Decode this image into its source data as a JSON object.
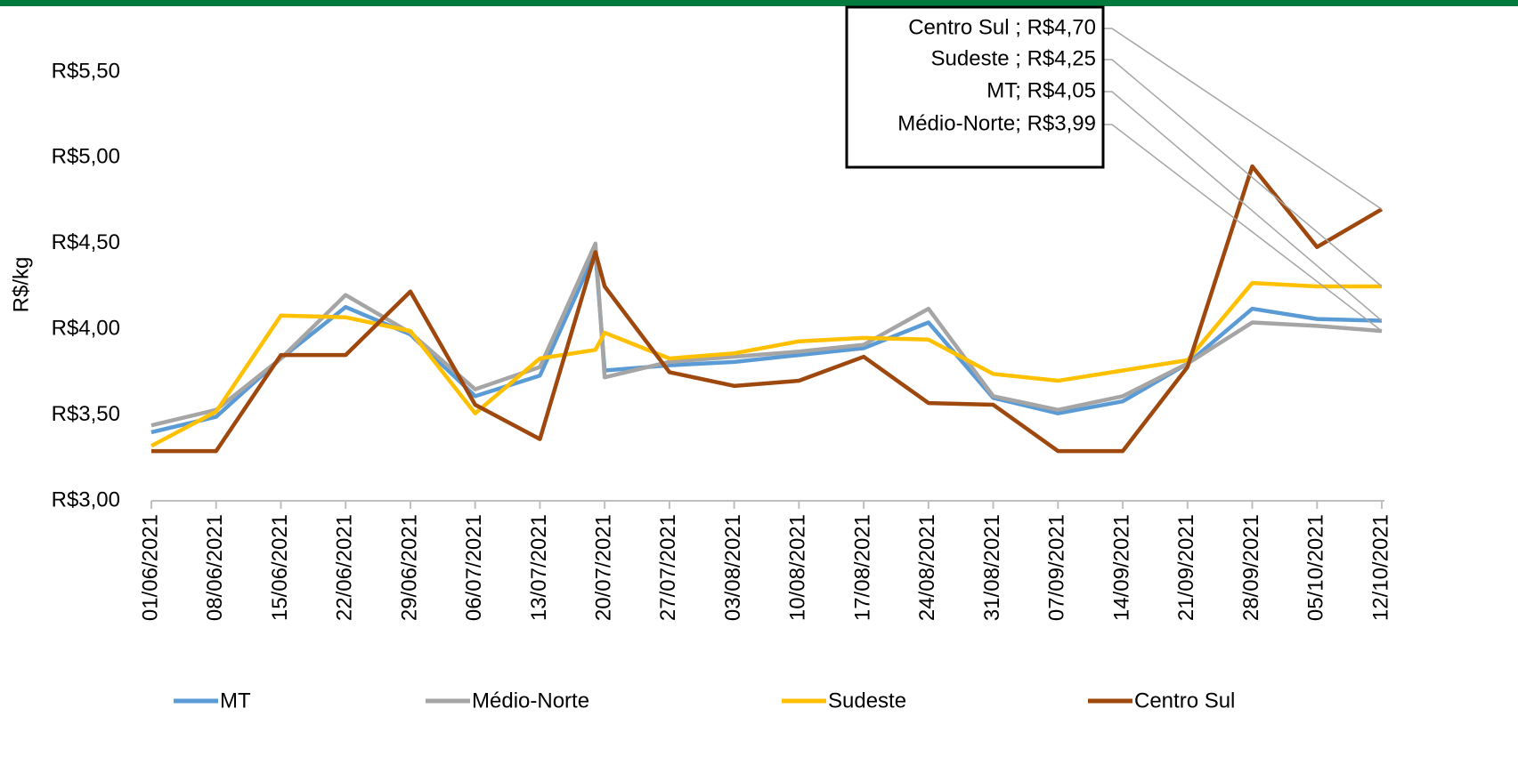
{
  "chart_data": {
    "type": "line",
    "y_label": "R$/kg",
    "x": [
      "2021-06-01",
      "2021-06-08",
      "2021-06-15",
      "2021-06-22",
      "2021-06-29",
      "2021-07-06",
      "2021-07-13",
      "2021-07-19",
      "2021-07-20",
      "2021-07-27",
      "2021-08-03",
      "2021-08-10",
      "2021-08-17",
      "2021-08-24",
      "2021-08-31",
      "2021-09-07",
      "2021-09-14",
      "2021-09-21",
      "2021-09-28",
      "2021-10-05",
      "2021-10-12"
    ],
    "xlim": [
      "2021-06-01",
      "2021-10-12"
    ],
    "xticks": [
      {
        "value": "2021-06-01",
        "label": "01/06/2021"
      },
      {
        "value": "2021-06-08",
        "label": "08/06/2021"
      },
      {
        "value": "2021-06-15",
        "label": "15/06/2021"
      },
      {
        "value": "2021-06-22",
        "label": "22/06/2021"
      },
      {
        "value": "2021-06-29",
        "label": "29/06/2021"
      },
      {
        "value": "2021-07-06",
        "label": "06/07/2021"
      },
      {
        "value": "2021-07-13",
        "label": "13/07/2021"
      },
      {
        "value": "2021-07-20",
        "label": "20/07/2021"
      },
      {
        "value": "2021-07-27",
        "label": "27/07/2021"
      },
      {
        "value": "2021-08-03",
        "label": "03/08/2021"
      },
      {
        "value": "2021-08-10",
        "label": "10/08/2021"
      },
      {
        "value": "2021-08-17",
        "label": "17/08/2021"
      },
      {
        "value": "2021-08-24",
        "label": "24/08/2021"
      },
      {
        "value": "2021-08-31",
        "label": "31/08/2021"
      },
      {
        "value": "2021-09-07",
        "label": "07/09/2021"
      },
      {
        "value": "2021-09-14",
        "label": "14/09/2021"
      },
      {
        "value": "2021-09-21",
        "label": "21/09/2021"
      },
      {
        "value": "2021-09-28",
        "label": "28/09/2021"
      },
      {
        "value": "2021-10-05",
        "label": "05/10/2021"
      },
      {
        "value": "2021-10-12",
        "label": "12/10/2021"
      }
    ],
    "ylim": [
      3,
      5.8
    ],
    "yticks": [
      {
        "value": 3,
        "label": "R$3,00"
      },
      {
        "value": 3.5,
        "label": "R$3,50"
      },
      {
        "value": 4,
        "label": "R$4,00"
      },
      {
        "value": 4.5,
        "label": "R$4,50"
      },
      {
        "value": 5,
        "label": "R$5,00"
      },
      {
        "value": 5.5,
        "label": "R$5,50"
      }
    ],
    "series": [
      {
        "name": "MT",
        "color": "#5b9bd5",
        "values": [
          3.4,
          3.49,
          3.83,
          4.13,
          3.97,
          3.61,
          3.73,
          4.45,
          3.76,
          3.79,
          3.81,
          3.85,
          3.89,
          4.04,
          3.6,
          3.51,
          3.58,
          3.8,
          4.12,
          4.06,
          4.05
        ],
        "value_labels": [
          null,
          null,
          null,
          null,
          null,
          null,
          null,
          null,
          null,
          null,
          null,
          null,
          null,
          null,
          null,
          null,
          null,
          null,
          null,
          null,
          "MT;  R$4,05"
        ]
      },
      {
        "name": "Médio-Norte",
        "color": "#a5a5a5",
        "values": [
          3.44,
          3.53,
          3.83,
          4.2,
          3.98,
          3.65,
          3.78,
          4.5,
          3.72,
          3.81,
          3.84,
          3.87,
          3.91,
          4.12,
          3.61,
          3.53,
          3.61,
          3.8,
          4.04,
          4.02,
          3.99
        ],
        "value_labels": [
          null,
          null,
          null,
          null,
          null,
          null,
          null,
          null,
          null,
          null,
          null,
          null,
          null,
          null,
          null,
          null,
          null,
          null,
          null,
          null,
          "Médio-Norte;  R$3,99"
        ]
      },
      {
        "name": "Sudeste",
        "color": "#ffc000",
        "values": [
          3.32,
          3.52,
          4.08,
          4.07,
          3.99,
          3.51,
          3.83,
          3.88,
          3.98,
          3.83,
          3.86,
          3.93,
          3.95,
          3.94,
          3.74,
          3.7,
          3.76,
          3.82,
          4.27,
          4.25,
          4.25
        ],
        "value_labels": [
          null,
          null,
          null,
          null,
          null,
          null,
          null,
          null,
          null,
          null,
          null,
          null,
          null,
          null,
          null,
          null,
          null,
          null,
          null,
          null,
          "Sudeste ;  R$4,25"
        ]
      },
      {
        "name": "Centro Sul",
        "color": "#9e480e",
        "values": [
          3.29,
          3.29,
          3.85,
          3.85,
          4.22,
          3.56,
          3.36,
          4.45,
          4.25,
          3.75,
          3.67,
          3.7,
          3.84,
          3.57,
          3.56,
          3.29,
          3.29,
          3.78,
          4.95,
          4.48,
          4.7
        ],
        "value_labels": [
          null,
          null,
          null,
          null,
          null,
          null,
          null,
          null,
          null,
          null,
          null,
          null,
          null,
          null,
          null,
          null,
          null,
          null,
          null,
          null,
          "Centro Sul ;  R$4,70"
        ]
      }
    ]
  }
}
